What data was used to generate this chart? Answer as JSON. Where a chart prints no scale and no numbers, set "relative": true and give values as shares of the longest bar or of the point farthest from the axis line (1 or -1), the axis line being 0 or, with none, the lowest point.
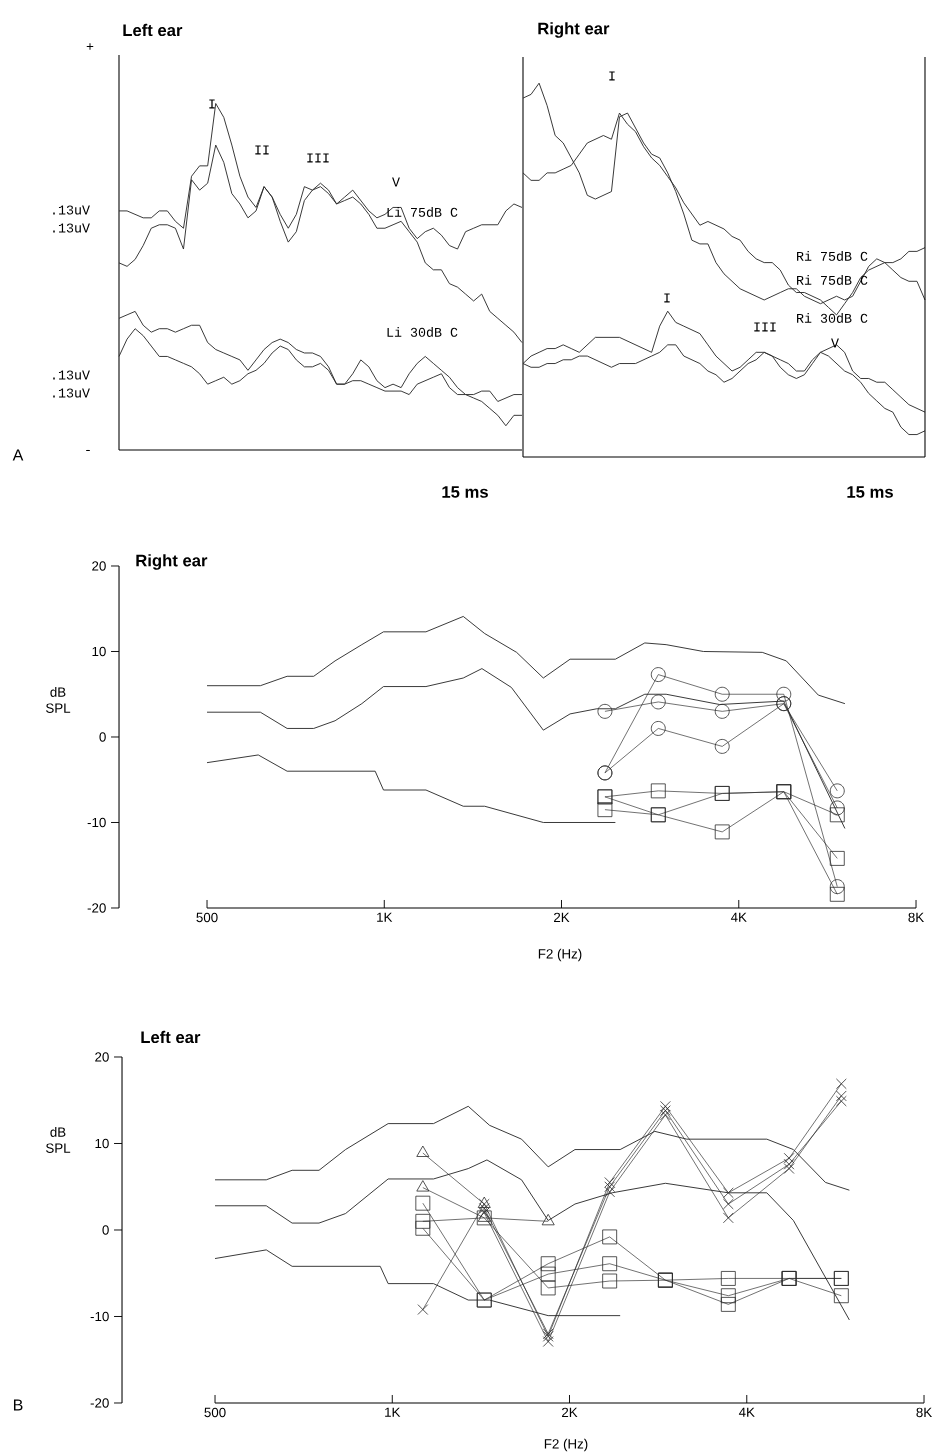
{
  "chart_data": [
    {
      "type": "line",
      "title": "Left ear",
      "xlabel": "15 ms",
      "relative": true,
      "marker": "none",
      "categories": [
        null,
        null,
        null,
        null,
        null,
        null,
        null,
        null,
        null,
        null,
        null,
        null,
        null,
        null,
        null,
        null,
        null,
        null,
        null,
        null,
        null,
        null,
        null,
        null,
        null,
        null,
        null,
        null,
        null,
        null,
        null,
        null,
        null,
        null,
        null,
        null,
        null,
        null,
        null,
        null,
        null,
        null,
        null,
        null,
        null,
        null,
        null,
        null,
        null,
        null,
        null
      ],
      "annotations": [
        "A",
        "+",
        "-",
        ".13uV",
        ".13uV",
        ".13uV",
        ".13uV",
        "Li 75dB C",
        "Li 30dB C",
        "I",
        "II",
        "III",
        "V"
      ],
      "series": [
        {
          "color": "#2b2b2b",
          "values": [
            0.69,
            0.69,
            0.68,
            0.67,
            0.67,
            0.69,
            0.69,
            0.66,
            0.64,
            0.79,
            0.82,
            0.82,
            1.0,
            0.96,
            0.88,
            0.79,
            0.73,
            0.7,
            0.76,
            0.73,
            0.68,
            0.64,
            0.68,
            0.76,
            0.75,
            0.76,
            0.74,
            0.71,
            0.73,
            0.75,
            0.72,
            0.69,
            0.67,
            0.68,
            0.7,
            0.7,
            0.64,
            0.61,
            0.63,
            0.64,
            0.62,
            0.59,
            0.58,
            0.63,
            0.64,
            0.65,
            0.65,
            0.65,
            0.69,
            0.71,
            0.7
          ]
        },
        {
          "color": "#2b2b2b",
          "values": [
            0.54,
            0.53,
            0.55,
            0.59,
            0.64,
            0.65,
            0.65,
            0.64,
            0.58,
            0.78,
            0.75,
            0.77,
            0.88,
            0.83,
            0.74,
            0.71,
            0.67,
            0.69,
            0.76,
            0.73,
            0.66,
            0.6,
            0.63,
            0.72,
            0.75,
            0.77,
            0.75,
            0.71,
            0.72,
            0.73,
            0.71,
            0.68,
            0.64,
            0.64,
            0.65,
            0.66,
            0.63,
            0.6,
            0.54,
            0.52,
            0.52,
            0.48,
            0.47,
            0.45,
            0.43,
            0.45,
            0.4,
            0.38,
            0.36,
            0.34,
            0.31
          ]
        },
        {
          "color": "#2b2b2b",
          "values": [
            0.38,
            0.39,
            0.4,
            0.36,
            0.34,
            0.35,
            0.35,
            0.34,
            0.35,
            0.36,
            0.36,
            0.31,
            0.29,
            0.28,
            0.27,
            0.26,
            0.23,
            0.26,
            0.29,
            0.31,
            0.32,
            0.31,
            0.29,
            0.28,
            0.28,
            0.27,
            0.24,
            0.19,
            0.19,
            0.22,
            0.26,
            0.24,
            0.2,
            0.18,
            0.19,
            0.18,
            0.22,
            0.25,
            0.27,
            0.25,
            0.23,
            0.21,
            0.18,
            0.16,
            0.16,
            0.17,
            0.17,
            0.14,
            0.15,
            0.16,
            0.16
          ]
        },
        {
          "color": "#2b2b2b",
          "values": [
            0.27,
            0.32,
            0.35,
            0.33,
            0.3,
            0.27,
            0.27,
            0.26,
            0.25,
            0.24,
            0.22,
            0.19,
            0.2,
            0.21,
            0.19,
            0.2,
            0.22,
            0.23,
            0.25,
            0.28,
            0.3,
            0.29,
            0.26,
            0.24,
            0.24,
            0.25,
            0.23,
            0.19,
            0.19,
            0.2,
            0.2,
            0.19,
            0.18,
            0.17,
            0.17,
            0.17,
            0.16,
            0.19,
            0.2,
            0.21,
            0.22,
            0.18,
            0.16,
            0.16,
            0.15,
            0.14,
            0.12,
            0.1,
            0.07,
            0.1,
            0.1
          ]
        }
      ]
    },
    {
      "type": "line",
      "title": "Right ear",
      "xlabel": "15 ms",
      "relative": true,
      "marker": "none",
      "categories": [
        null,
        null,
        null,
        null,
        null,
        null,
        null,
        null,
        null,
        null,
        null,
        null,
        null,
        null,
        null,
        null,
        null,
        null,
        null,
        null,
        null,
        null,
        null,
        null,
        null,
        null,
        null,
        null,
        null,
        null,
        null,
        null,
        null,
        null,
        null,
        null,
        null,
        null,
        null,
        null,
        null,
        null,
        null,
        null,
        null,
        null,
        null,
        null,
        null,
        null,
        null
      ],
      "annotations": [
        "Ri 75dB C",
        "Ri 75dB C",
        "Ri 30dB C",
        "I",
        "I",
        "III",
        "V"
      ],
      "series": [
        {
          "color": "#2b2b2b",
          "values": [
            0.96,
            0.97,
            1.0,
            0.94,
            0.86,
            0.84,
            0.8,
            0.76,
            0.7,
            0.69,
            0.7,
            0.71,
            0.91,
            0.92,
            0.88,
            0.84,
            0.81,
            0.8,
            0.76,
            0.71,
            0.65,
            0.58,
            0.57,
            0.57,
            0.52,
            0.49,
            0.47,
            0.45,
            0.44,
            0.43,
            0.42,
            0.43,
            0.44,
            0.45,
            0.45,
            0.43,
            0.42,
            0.41,
            0.42,
            0.43,
            0.42,
            0.43,
            0.47,
            0.51,
            0.53,
            0.52,
            0.52,
            0.53,
            0.55,
            0.55,
            0.56
          ]
        },
        {
          "color": "#2b2b2b",
          "values": [
            0.76,
            0.74,
            0.74,
            0.76,
            0.76,
            0.77,
            0.78,
            0.81,
            0.84,
            0.85,
            0.86,
            0.85,
            0.92,
            0.89,
            0.87,
            0.83,
            0.8,
            0.78,
            0.75,
            0.72,
            0.68,
            0.65,
            0.62,
            0.63,
            0.62,
            0.61,
            0.59,
            0.58,
            0.55,
            0.53,
            0.52,
            0.52,
            0.5,
            0.46,
            0.44,
            0.44,
            0.43,
            0.42,
            0.4,
            0.38,
            0.41,
            0.44,
            0.48,
            0.5,
            0.51,
            0.52,
            0.5,
            0.48,
            0.47,
            0.47,
            0.42
          ]
        },
        {
          "color": "#2b2b2b",
          "values": [
            0.25,
            0.27,
            0.28,
            0.29,
            0.29,
            0.3,
            0.29,
            0.28,
            0.3,
            0.32,
            0.32,
            0.32,
            0.32,
            0.31,
            0.3,
            0.29,
            0.28,
            0.35,
            0.39,
            0.36,
            0.35,
            0.34,
            0.33,
            0.3,
            0.27,
            0.25,
            0.23,
            0.24,
            0.26,
            0.28,
            0.28,
            0.27,
            0.26,
            0.25,
            0.23,
            0.23,
            0.26,
            0.28,
            0.29,
            0.3,
            0.28,
            0.23,
            0.21,
            0.21,
            0.2,
            0.2,
            0.18,
            0.16,
            0.14,
            0.13,
            0.12
          ]
        },
        {
          "color": "#2b2b2b",
          "values": [
            0.25,
            0.24,
            0.24,
            0.25,
            0.25,
            0.26,
            0.26,
            0.27,
            0.27,
            0.26,
            0.25,
            0.24,
            0.25,
            0.25,
            0.25,
            0.26,
            0.27,
            0.28,
            0.3,
            0.3,
            0.27,
            0.26,
            0.25,
            0.23,
            0.22,
            0.2,
            0.21,
            0.23,
            0.25,
            0.26,
            0.28,
            0.27,
            0.24,
            0.22,
            0.21,
            0.22,
            0.25,
            0.28,
            0.27,
            0.25,
            0.23,
            0.22,
            0.2,
            0.17,
            0.15,
            0.13,
            0.12,
            0.08,
            0.06,
            0.06,
            0.07
          ]
        }
      ]
    },
    {
      "type": "line",
      "title": "Right ear",
      "xlabel": "F2 (Hz)",
      "ylabel": "dB SPL",
      "log": "x",
      "xlim": [
        500,
        8000
      ],
      "ylim": [
        -20,
        20
      ],
      "xticks": [
        {
          "value": 500,
          "label": "500"
        },
        {
          "value": 1000,
          "label": "1K"
        },
        {
          "value": 2000,
          "label": "2K"
        },
        {
          "value": 4000,
          "label": "4K"
        },
        {
          "value": 8000,
          "label": "8K"
        }
      ],
      "yticks": [
        -20,
        -10,
        0,
        10,
        20
      ],
      "series": [
        {
          "color": "#2b2b2b",
          "marker": "none",
          "x": [
            500,
            616,
            684,
            759,
            825,
            916,
            997,
            1177,
            1362,
            1481,
            1678,
            1863,
            2068,
            2469,
            2770,
            3011,
            3484,
            4385,
            4817,
            5460,
            6058
          ],
          "values": [
            6.0,
            6.0,
            7.1,
            7.1,
            8.9,
            10.8,
            12.3,
            12.3,
            14.1,
            12.1,
            9.9,
            6.9,
            9.1,
            9.1,
            11.0,
            10.8,
            10.0,
            9.9,
            8.9,
            4.9,
            3.9
          ]
        },
        {
          "color": "#2b2b2b",
          "marker": "none",
          "x": [
            500,
            616,
            684,
            759,
            825,
            916,
            997,
            1177,
            1362,
            1465,
            1644,
            1863,
            2068,
            2296,
            2469,
            2770,
            3011,
            3711,
            4767,
            6058
          ],
          "values": [
            2.9,
            2.9,
            1.0,
            1.0,
            1.9,
            3.9,
            5.9,
            5.9,
            6.9,
            8.0,
            5.8,
            0.8,
            2.7,
            3.3,
            3.3,
            5.0,
            5.0,
            3.8,
            4.2,
            -10.7
          ]
        },
        {
          "color": "#2b2b2b",
          "marker": "none",
          "x": [
            500,
            611,
            684,
            965,
            997,
            1177,
            1362,
            1481,
            1863,
            2469
          ],
          "values": [
            -3.0,
            -2.1,
            -4.0,
            -4.0,
            -6.2,
            -6.2,
            -8.1,
            -8.1,
            -10.0,
            -10.0
          ]
        },
        {
          "color": "#2b2b2b",
          "marker": "circle",
          "x": [
            2370,
            2920,
            3750,
            4770,
            5880
          ],
          "values": [
            3.0,
            4.1,
            3.0,
            3.9,
            -8.3
          ]
        },
        {
          "color": "#2b2b2b",
          "marker": "circle",
          "x": [
            2370,
            2920,
            3750,
            4770,
            5880
          ],
          "values": [
            -4.2,
            7.3,
            5.0,
            5.0,
            -17.5
          ]
        },
        {
          "color": "#2b2b2b",
          "marker": "circle",
          "x": [
            2370,
            2920,
            3750,
            4770,
            5880
          ],
          "values": [
            -4.2,
            1.0,
            -1.1,
            3.9,
            -6.3
          ]
        },
        {
          "color": "#2b2b2b",
          "marker": "square",
          "x": [
            2370,
            2920,
            3750,
            4770,
            5880
          ],
          "values": [
            -7.0,
            -6.3,
            -6.6,
            -6.4,
            -9.1
          ]
        },
        {
          "color": "#2b2b2b",
          "marker": "square",
          "x": [
            2370,
            2920,
            3750,
            4770,
            5880
          ],
          "values": [
            -8.5,
            -9.1,
            -11.1,
            -6.4,
            -14.2
          ]
        },
        {
          "color": "#2b2b2b",
          "marker": "square",
          "x": [
            2370,
            2920,
            3750,
            4770,
            5880
          ],
          "values": [
            -7.0,
            -9.1,
            -6.6,
            -6.4,
            -18.4
          ]
        }
      ]
    },
    {
      "type": "line",
      "title": "Left ear",
      "xlabel": "F2 (Hz)",
      "ylabel": "dB SPL",
      "log": "x",
      "xlim": [
        500,
        8000
      ],
      "ylim": [
        -20,
        20
      ],
      "xticks": [
        {
          "value": 500,
          "label": "500"
        },
        {
          "value": 1000,
          "label": "1K"
        },
        {
          "value": 2000,
          "label": "2K"
        },
        {
          "value": 4000,
          "label": "4K"
        },
        {
          "value": 8000,
          "label": "8K"
        }
      ],
      "yticks": [
        -20,
        -10,
        0,
        10,
        20
      ],
      "annotations": [
        "B"
      ],
      "series": [
        {
          "color": "#2b2b2b",
          "marker": "none",
          "x": [
            500,
            611,
            676,
            751,
            833,
            984,
            1175,
            1346,
            1463,
            1658,
            1840,
            2043,
            2438,
            2792,
            3164,
            4326,
            4800,
            5441,
            5975
          ],
          "values": [
            5.8,
            5.8,
            6.9,
            6.9,
            9.3,
            12.3,
            12.3,
            14.3,
            12.1,
            10.5,
            7.3,
            9.3,
            9.3,
            11.4,
            10.5,
            10.5,
            9.3,
            5.5,
            4.6
          ]
        },
        {
          "color": "#2b2b2b",
          "marker": "none",
          "x": [
            500,
            611,
            676,
            751,
            833,
            984,
            1175,
            1346,
            1448,
            1658,
            1840,
            2043,
            2363,
            2910,
            3722,
            4326,
            4800,
            5975
          ],
          "values": [
            2.8,
            2.8,
            0.8,
            0.8,
            1.9,
            5.9,
            5.9,
            7.1,
            8.1,
            5.8,
            1.1,
            3.0,
            4.3,
            5.4,
            4.3,
            4.3,
            1.1,
            -10.4
          ]
        },
        {
          "color": "#2b2b2b",
          "marker": "none",
          "x": [
            500,
            611,
            676,
            954,
            984,
            1175,
            1346,
            1463,
            1840,
            2438
          ],
          "values": [
            -3.3,
            -2.3,
            -4.2,
            -4.2,
            -6.2,
            -6.2,
            -8.1,
            -8.1,
            -9.9,
            -9.9
          ]
        },
        {
          "color": "#2b2b2b",
          "marker": "cross",
          "x": [
            1127,
            1433,
            1840,
            2340,
            2910,
            3722,
            4720,
            5790
          ],
          "values": [
            -9.2,
            3.0,
            -12.3,
            5.5,
            14.3,
            4.3,
            8.3,
            16.9
          ]
        },
        {
          "color": "#2b2b2b",
          "marker": "cross",
          "x": [
            1433,
            1840,
            2340,
            2910,
            3722,
            4720,
            5790
          ],
          "values": [
            2.0,
            -12.9,
            4.4,
            13.3,
            1.4,
            7.1,
            15.5
          ]
        },
        {
          "color": "#2b2b2b",
          "marker": "cross",
          "x": [
            1433,
            1840,
            2340,
            2910,
            3722,
            4720,
            5790
          ],
          "values": [
            2.5,
            -12.0,
            5.0,
            13.8,
            3.0,
            7.6,
            14.9
          ]
        },
        {
          "color": "#2b2b2b",
          "marker": "triangle",
          "x": [
            1127,
            1433,
            1840
          ],
          "values": [
            4.9,
            1.4,
            1.0
          ]
        },
        {
          "color": "#2b2b2b",
          "marker": "triangle",
          "x": [
            1127,
            1433
          ],
          "values": [
            8.9,
            3.0
          ]
        },
        {
          "color": "#2b2b2b",
          "marker": "square",
          "x": [
            1127,
            1433,
            1840,
            2340,
            2910,
            3722,
            4720,
            5790
          ],
          "values": [
            1.0,
            1.4,
            -6.7,
            -5.9,
            -5.8,
            -5.6,
            -5.6,
            -5.6
          ]
        },
        {
          "color": "#2b2b2b",
          "marker": "square",
          "x": [
            1127,
            1433,
            1840,
            2340,
            2910,
            3722,
            4720,
            5790
          ],
          "values": [
            0.2,
            -8.1,
            -3.9,
            -0.8,
            -5.8,
            -7.6,
            -5.6,
            -7.6
          ]
        },
        {
          "color": "#2b2b2b",
          "marker": "square",
          "x": [
            1127,
            1433,
            1840,
            2340,
            2910,
            3722,
            4720,
            5790
          ],
          "values": [
            3.1,
            -8.1,
            -5.1,
            -3.9,
            -5.8,
            -8.6,
            -5.6,
            -5.6
          ]
        }
      ]
    }
  ]
}
